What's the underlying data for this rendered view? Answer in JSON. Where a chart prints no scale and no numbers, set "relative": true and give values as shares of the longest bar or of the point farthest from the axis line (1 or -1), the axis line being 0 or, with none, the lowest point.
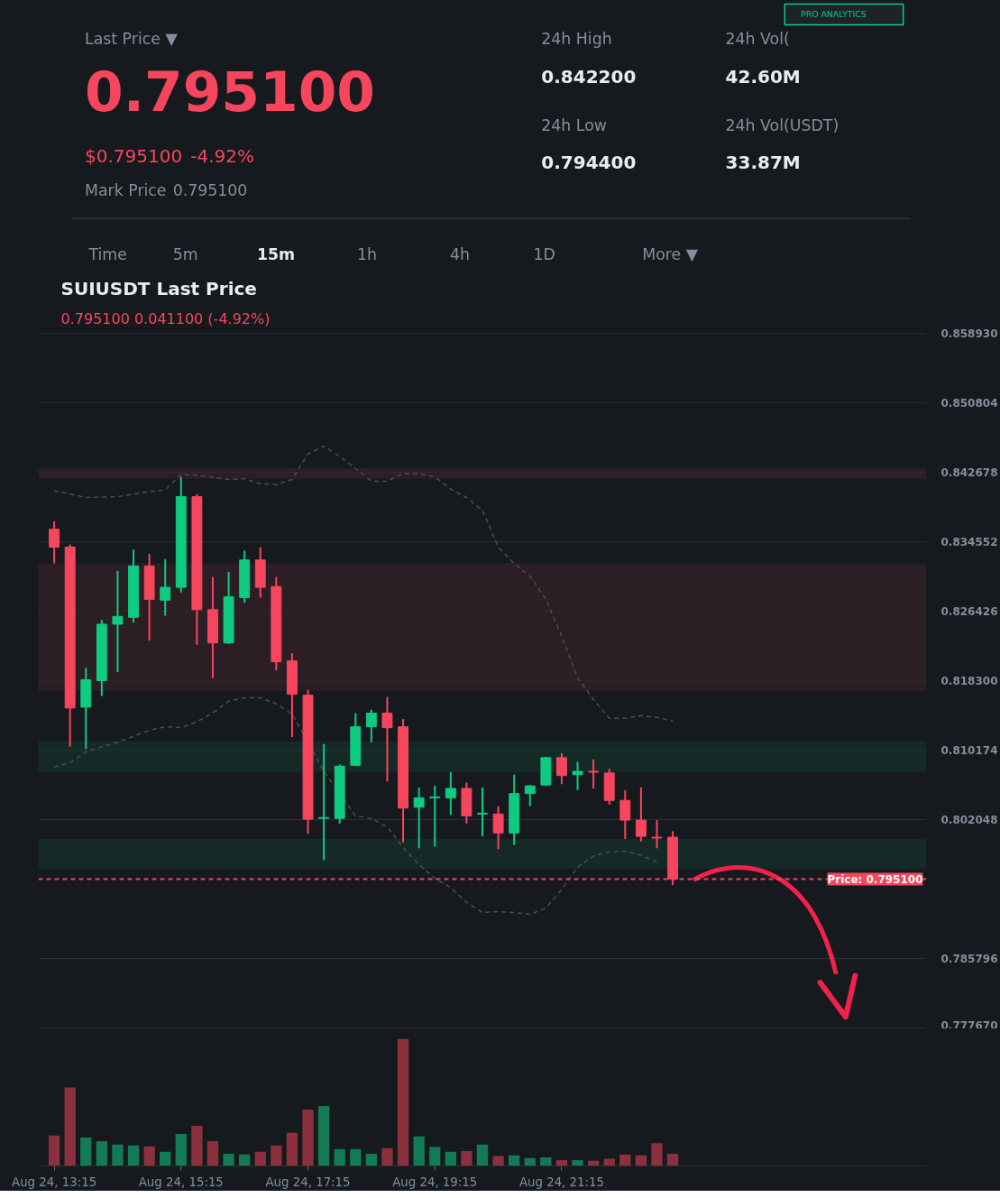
{
  "chart_data": [
    {
      "type": "other",
      "annotations": [
        "Last Price ▼",
        "0.795100",
        "$0.795100",
        "-4.92%",
        "Mark Price",
        "0.795100",
        "24h High",
        "0.842200",
        "24h Low",
        "0.794400",
        "24h Vol(",
        "42.60M",
        "24h Vol(USDT)",
        "33.87M",
        "PRO ANALYTICS",
        "Time",
        "5m",
        "15m",
        "1h",
        "4h",
        "1D",
        "More ▼"
      ]
    },
    {
      "type": "candlestick",
      "title": "SUIUSDT Last Price",
      "subtitle": "0.795100  0.041100 (-4.92%)",
      "categories": [
        null,
        null,
        null,
        null,
        null,
        null,
        null,
        null,
        null,
        null,
        null,
        null,
        null,
        null,
        null,
        null,
        null,
        null,
        null,
        null,
        null,
        null,
        null,
        null,
        null,
        null,
        null,
        null,
        null,
        null,
        null,
        null,
        null,
        null,
        null,
        null,
        null,
        null,
        null,
        null
      ],
      "ohlc": [
        [
          0.836,
          0.8369,
          0.832,
          0.8339
        ],
        [
          0.8339,
          0.8342,
          0.8106,
          0.8151
        ],
        [
          0.8152,
          0.8198,
          0.8103,
          0.8184
        ],
        [
          0.8183,
          0.8254,
          0.8165,
          0.8249
        ],
        [
          0.8249,
          0.8311,
          0.8193,
          0.8258
        ],
        [
          0.8257,
          0.8336,
          0.8251,
          0.8317
        ],
        [
          0.8317,
          0.8331,
          0.823,
          0.8278
        ],
        [
          0.8277,
          0.8325,
          0.8259,
          0.8292
        ],
        [
          0.8292,
          0.8421,
          0.8286,
          0.8398
        ],
        [
          0.8398,
          0.8401,
          0.8225,
          0.8266
        ],
        [
          0.8266,
          0.8304,
          0.8186,
          0.8227
        ],
        [
          0.8227,
          0.831,
          0.8226,
          0.8281
        ],
        [
          0.828,
          0.8335,
          0.8274,
          0.8324
        ],
        [
          0.8324,
          0.8339,
          0.828,
          0.8292
        ],
        [
          0.8293,
          0.8304,
          0.8195,
          0.8205
        ],
        [
          0.8206,
          0.8215,
          0.8117,
          0.8167
        ],
        [
          0.8166,
          0.8172,
          0.8004,
          0.8021
        ],
        [
          0.8022,
          0.8109,
          0.7973,
          0.8023
        ],
        [
          0.8022,
          0.8085,
          0.8016,
          0.8083
        ],
        [
          0.8084,
          0.8145,
          0.8083,
          0.8129
        ],
        [
          0.8129,
          0.8149,
          0.8111,
          0.8145
        ],
        [
          0.8145,
          0.8164,
          0.8065,
          0.8128
        ],
        [
          0.8129,
          0.8138,
          0.7994,
          0.8034
        ],
        [
          0.8035,
          0.8058,
          0.7987,
          0.8046
        ],
        [
          0.8046,
          0.806,
          0.7989,
          0.8047
        ],
        [
          0.8046,
          0.8076,
          0.8026,
          0.8057
        ],
        [
          0.8057,
          0.8064,
          0.8016,
          0.8025
        ],
        [
          0.8027,
          0.8058,
          0.8001,
          0.8028
        ],
        [
          0.8027,
          0.8036,
          0.7986,
          0.8005
        ],
        [
          0.8005,
          0.8073,
          0.7991,
          0.8051
        ],
        [
          0.8051,
          0.8061,
          0.8036,
          0.806
        ],
        [
          0.8061,
          0.8094,
          0.806,
          0.8093
        ],
        [
          0.8093,
          0.8098,
          0.8062,
          0.8072
        ],
        [
          0.8073,
          0.8088,
          0.8055,
          0.8077
        ],
        [
          0.8077,
          0.8091,
          0.8057,
          0.8076
        ],
        [
          0.8075,
          0.808,
          0.8038,
          0.8043
        ],
        [
          0.8043,
          0.8055,
          0.7998,
          0.802
        ],
        [
          0.802,
          0.8058,
          0.7995,
          0.8001
        ],
        [
          0.8,
          0.802,
          0.7987,
          0.7999
        ],
        [
          0.8,
          0.8007,
          0.7944,
          0.7951
        ]
      ],
      "colors": [
        "#f6465d",
        "#f6465d",
        "#0ecb81",
        "#0ecb81",
        "#0ecb81",
        "#0ecb81",
        "#f6465d",
        "#0ecb81",
        "#0ecb81",
        "#f6465d",
        "#f6465d",
        "#0ecb81",
        "#0ecb81",
        "#f6465d",
        "#f6465d",
        "#f6465d",
        "#f6465d",
        "#0ecb81",
        "#0ecb81",
        "#0ecb81",
        "#0ecb81",
        "#f6465d",
        "#f6465d",
        "#0ecb81",
        "#0ecb81",
        "#0ecb81",
        "#f6465d",
        "#0ecb81",
        "#f6465d",
        "#0ecb81",
        "#0ecb81",
        "#0ecb81",
        "#f6465d",
        "#0ecb81",
        "#f6465d",
        "#f6465d",
        "#f6465d",
        "#f6465d",
        "#f6465d",
        "#f6465d"
      ],
      "series": [
        {
          "type": "line",
          "color": "#4a4e55",
          "line_style": "dashed",
          "values": [
            0.8405,
            null,
            0.8397,
            null,
            0.8398,
            null,
            0.8404,
            0.8406,
            0.8424,
            0.8423,
            null,
            0.8418,
            0.8419,
            0.8413,
            0.8412,
            0.8418,
            0.8448,
            0.8457,
            0.8445,
            0.8431,
            0.8416,
            0.8416,
            0.8425,
            0.8425,
            0.8421,
            0.8407,
            0.8397,
            0.8382,
            0.8339,
            0.832,
            0.8305,
            0.8278,
            0.8235,
            0.8186,
            0.8161,
            0.8139,
            0.8139,
            0.8142,
            0.814,
            0.8136
          ]
        },
        {
          "type": "line",
          "color": "#4a4e55",
          "line_style": "dashed",
          "values": [
            0.8082,
            0.8087,
            0.81,
            null,
            0.8111,
            null,
            0.8125,
            0.8129,
            0.8128,
            0.8135,
            0.8145,
            0.8159,
            0.8163,
            0.8163,
            0.8156,
            0.8144,
            null,
            0.8077,
            null,
            0.8025,
            0.8022,
            0.8012,
            0.7988,
            0.7968,
            0.7952,
            0.7941,
            0.7924,
            0.7912,
            0.7913,
            0.7912,
            0.791,
            0.7917,
            0.7939,
            0.7965,
            0.7978,
            0.7983,
            0.7984,
            0.7979,
            0.7971,
            null
          ]
        }
      ],
      "bands": [
        {
          "axis": "y",
          "from": 0.8419,
          "to": 0.8431,
          "color": "#3a2128"
        },
        {
          "axis": "y",
          "from": 0.8171,
          "to": 0.832,
          "color": "#3a2128"
        },
        {
          "axis": "y",
          "from": 0.8076,
          "to": 0.8112,
          "color": "#15352b"
        },
        {
          "axis": "y",
          "from": 0.7963,
          "to": 0.7998,
          "color": "#15352b"
        }
      ],
      "ref_lines": [
        {
          "axis": "y",
          "value": 0.7951,
          "label": "Price: 0.795100",
          "color": "#f6465d",
          "line_style": "dashed"
        }
      ],
      "ylim": [
        0.7776,
        0.8591
      ],
      "yticks": [
        {
          "value": 0.85893,
          "label": "0.858930"
        },
        {
          "value": 0.850804,
          "label": "0.850804"
        },
        {
          "value": 0.842678,
          "label": "0.842678"
        },
        {
          "value": 0.834552,
          "label": "0.834552"
        },
        {
          "value": 0.826426,
          "label": "0.826426"
        },
        {
          "value": 0.8183,
          "label": "0.818300"
        },
        {
          "value": 0.810174,
          "label": "0.810174"
        },
        {
          "value": 0.802048,
          "label": "0.802048"
        },
        {
          "value": 0.785796,
          "label": "0.785796"
        },
        {
          "value": 0.77767,
          "label": "0.777670"
        }
      ],
      "tick_labels": "y",
      "grid": "y"
    },
    {
      "type": "bar",
      "relative": true,
      "categories": [
        "Aug 24, 13:15",
        null,
        null,
        null,
        null,
        null,
        null,
        null,
        "Aug 24, 15:15",
        null,
        null,
        null,
        null,
        null,
        null,
        null,
        "Aug 24, 17:15",
        null,
        null,
        null,
        null,
        null,
        null,
        null,
        "Aug 24, 19:15",
        null,
        null,
        null,
        null,
        null,
        null,
        null,
        "Aug 24, 21:15",
        null,
        null,
        null,
        null,
        null,
        null,
        null
      ],
      "values": [
        0.239,
        0.618,
        0.224,
        0.196,
        0.168,
        0.161,
        0.155,
        0.112,
        0.252,
        0.317,
        0.196,
        0.096,
        0.09,
        0.112,
        0.161,
        0.261,
        0.444,
        0.472,
        0.134,
        0.134,
        0.096,
        0.14,
        1,
        0.233,
        0.149,
        0.112,
        0.118,
        0.168,
        0.078,
        0.084,
        0.062,
        0.068,
        0.047,
        0.047,
        0.04,
        0.056,
        0.09,
        0.084,
        0.18,
        0.096
      ],
      "colors": [
        "#8b303d",
        "#8b303d",
        "#127a55",
        "#127a55",
        "#127a55",
        "#127a55",
        "#8b303d",
        "#127a55",
        "#127a55",
        "#8b303d",
        "#8b303d",
        "#127a55",
        "#127a55",
        "#8b303d",
        "#8b303d",
        "#8b303d",
        "#8b303d",
        "#127a55",
        "#127a55",
        "#127a55",
        "#127a55",
        "#8b303d",
        "#8b303d",
        "#127a55",
        "#127a55",
        "#127a55",
        "#8b303d",
        "#127a55",
        "#8b303d",
        "#127a55",
        "#127a55",
        "#127a55",
        "#8b303d",
        "#127a55",
        "#8b303d",
        "#8b303d",
        "#8b303d",
        "#8b303d",
        "#8b303d",
        "#8b303d"
      ]
    }
  ]
}
